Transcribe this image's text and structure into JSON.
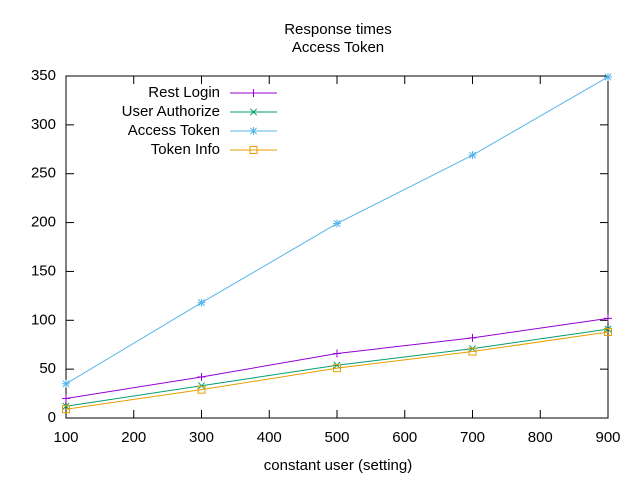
{
  "chart_data": {
    "type": "line",
    "title": "Response times",
    "subtitle": "Access Token",
    "x_label": "constant user (setting)",
    "x": [
      100,
      300,
      500,
      700,
      900
    ],
    "series": [
      {
        "name": "Rest Login",
        "color": "#9400d3",
        "marker": "plus",
        "values": [
          20,
          42,
          66,
          82,
          102
        ]
      },
      {
        "name": "User Authorize",
        "color": "#009e73",
        "marker": "cross",
        "values": [
          12,
          33,
          54,
          71,
          91
        ]
      },
      {
        "name": "Access Token",
        "color": "#56b4e9",
        "marker": "star",
        "values": [
          35,
          118,
          199,
          269,
          349
        ]
      },
      {
        "name": "Token Info",
        "color": "#e69f00",
        "marker": "square",
        "values": [
          9,
          29,
          51,
          68,
          88
        ]
      }
    ],
    "xlim": [
      100,
      900
    ],
    "xticks": [
      100,
      200,
      300,
      400,
      500,
      600,
      700,
      800,
      900
    ],
    "ylim": [
      0,
      350
    ],
    "yticks": [
      0,
      50,
      100,
      150,
      200,
      250,
      300,
      350
    ],
    "grid": false,
    "legend": "top-left"
  }
}
